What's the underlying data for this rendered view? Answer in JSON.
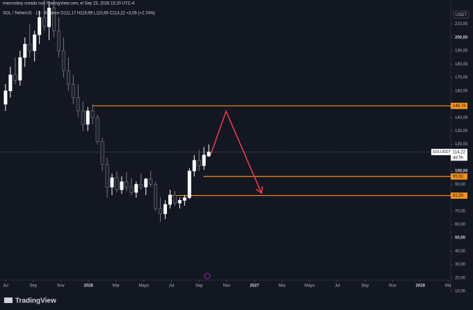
{
  "chart_data": {
    "type": "candlestick",
    "header": {
      "credit": "macrosboy creado con TradingView.com, el Sep 23, 2026 15:20 UTC-4",
      "symbol_line": "SOL / TetherUS · 1S · Binance  O111,17 H119,99 L110,69 C114,22 +3,05 (+2,74%)"
    },
    "currency": "USDT",
    "brand": "TradingView",
    "up_color": "#ffffff",
    "down_color": "#1e222d",
    "wick_color": "#787b86",
    "x": [
      0,
      0.35,
      0.7,
      1.05,
      1.4,
      1.75,
      2.1,
      2.45,
      2.8,
      3.15,
      3.5,
      3.85,
      4.2,
      4.55,
      4.9,
      5.25,
      5.6,
      5.95,
      6.3,
      6.65,
      7,
      7.35,
      7.7,
      8.05,
      8.4,
      8.75,
      9.1,
      9.45,
      9.8,
      10.15,
      10.5,
      10.85,
      11.2,
      11.55,
      11.9,
      12.25,
      12.6,
      12.95,
      13.3,
      13.65,
      14,
      14.35,
      14.7
    ],
    "open": [
      150,
      160,
      172,
      168,
      185,
      195,
      190,
      202,
      215,
      208,
      222,
      205,
      190,
      175,
      165,
      155,
      145,
      135,
      145,
      140,
      122,
      105,
      88,
      95,
      86,
      92,
      88,
      84,
      90,
      88,
      94,
      90,
      72,
      68,
      75,
      82,
      76,
      78,
      80,
      100,
      108,
      104,
      111.17
    ],
    "high": [
      165,
      178,
      185,
      190,
      200,
      210,
      205,
      220,
      230,
      227,
      228,
      215,
      200,
      185,
      172,
      165,
      152,
      148,
      150,
      142,
      125,
      110,
      98,
      100,
      96,
      99,
      95,
      92,
      98,
      95,
      100,
      92,
      80,
      78,
      86,
      85,
      80,
      82,
      102,
      112,
      116,
      118,
      119.99
    ],
    "low": [
      145,
      155,
      165,
      164,
      178,
      185,
      182,
      195,
      205,
      198,
      200,
      185,
      170,
      160,
      150,
      140,
      130,
      130,
      135,
      120,
      100,
      80,
      82,
      84,
      83,
      85,
      82,
      80,
      86,
      82,
      88,
      70,
      62,
      64,
      72,
      74,
      72,
      74,
      79,
      96,
      100,
      101,
      110.69
    ],
    "close": [
      160,
      172,
      168,
      185,
      195,
      190,
      202,
      215,
      208,
      222,
      205,
      190,
      175,
      165,
      155,
      145,
      135,
      145,
      140,
      122,
      105,
      88,
      95,
      86,
      92,
      88,
      84,
      90,
      88,
      94,
      90,
      72,
      68,
      75,
      82,
      76,
      78,
      80,
      100,
      108,
      104,
      112,
      114.22
    ],
    "xlim": [
      -0.4,
      32.2
    ],
    "xticks": [
      {
        "value": 0,
        "label": "Jul"
      },
      {
        "value": 2,
        "label": "Sep"
      },
      {
        "value": 4,
        "label": "Nov"
      },
      {
        "value": 6,
        "label": "2026"
      },
      {
        "value": 8,
        "label": "Mar"
      },
      {
        "value": 10,
        "label": "Mayo"
      },
      {
        "value": 12,
        "label": "Jul"
      },
      {
        "value": 14,
        "label": "Sep"
      },
      {
        "value": 16,
        "label": "Nov"
      },
      {
        "value": 18,
        "label": "2027"
      },
      {
        "value": 20,
        "label": "Mar"
      },
      {
        "value": 22,
        "label": "Mayo"
      },
      {
        "value": 24,
        "label": "Jul"
      },
      {
        "value": 26,
        "label": "Sep"
      },
      {
        "value": 28,
        "label": "Nov"
      },
      {
        "value": 30,
        "label": "2028"
      },
      {
        "value": 32,
        "label": "Ma"
      }
    ],
    "ylim": [
      10,
      227
    ],
    "yticks": [
      {
        "value": 10,
        "label": "10,00"
      },
      {
        "value": 20,
        "label": "20,00"
      },
      {
        "value": 30,
        "label": "30,00"
      },
      {
        "value": 40,
        "label": "40,00"
      },
      {
        "value": 50,
        "label": "50,00"
      },
      {
        "value": 60,
        "label": "60,00"
      },
      {
        "value": 70,
        "label": "70,00"
      },
      {
        "value": 90,
        "label": "90,00"
      },
      {
        "value": 100,
        "label": "100,00"
      },
      {
        "value": 120,
        "label": "120,00"
      },
      {
        "value": 130,
        "label": "130,00"
      },
      {
        "value": 140,
        "label": "140,00"
      },
      {
        "value": 160,
        "label": "160,00"
      },
      {
        "value": 170,
        "label": "170,00"
      },
      {
        "value": 180,
        "label": "180,00"
      },
      {
        "value": 190,
        "label": "190,00"
      },
      {
        "value": 200,
        "label": "200,00"
      },
      {
        "value": 210,
        "label": "210,00"
      }
    ],
    "levels": [
      {
        "value": 148.78,
        "label": "148,78",
        "x": 6.3,
        "color": "#f7931a"
      },
      {
        "value": 95.92,
        "label": "95,92",
        "x": 14.3,
        "color": "#f7931a"
      },
      {
        "value": 81.59,
        "label": "81,59",
        "x": 11.9,
        "color": "#f7931a"
      }
    ],
    "last": {
      "value": 114.22,
      "label": "114,22",
      "symbol": "SOLUSDT",
      "countdown": "4d 5h"
    }
  }
}
